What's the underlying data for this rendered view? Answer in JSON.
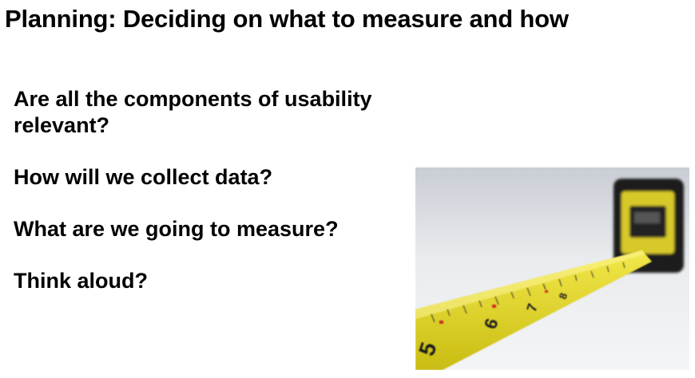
{
  "slide": {
    "title": "Planning: Deciding on what to measure and how",
    "bullets": [
      "Are all the components of usability relevant?",
      "How will we collect data?",
      "What are we going to measure?",
      "Think aloud?"
    ]
  },
  "image": {
    "subject": "tape-measure",
    "tape_numbers": [
      "5",
      "6",
      "7",
      "8"
    ],
    "colors": {
      "tape": "#e6da2a",
      "casing": "#1a1a1a"
    }
  }
}
